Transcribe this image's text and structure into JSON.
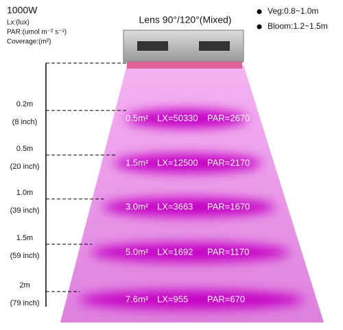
{
  "header": {
    "model": "1000W",
    "lx_unit": "Lx:(lux)",
    "par_unit": "PAR:(umol m⁻² s⁻¹)",
    "coverage_unit": "Coverage:(m²)"
  },
  "lens": "Lens 90°/120°(Mixed)",
  "legend": [
    {
      "label": "Veg:0.8~1.0m"
    },
    {
      "label": "Bloom:1.2~1.5m"
    }
  ],
  "levels": [
    {
      "distance": "0.2m",
      "inch": "(8 inch)",
      "coverage": "0.5m²",
      "lx": "LX=50330",
      "par": "PAR=2670"
    },
    {
      "distance": "0.5m",
      "inch": "(20 inch)",
      "coverage": "1.5m²",
      "lx": "LX=12500",
      "par": "PAR=2170"
    },
    {
      "distance": "1.0m",
      "inch": "(39 inch)",
      "coverage": "3.0m²",
      "lx": "LX=3663",
      "par": "PAR=1670"
    },
    {
      "distance": "1.5m",
      "inch": "(59 inch)",
      "coverage": "5.0m²",
      "lx": "LX=1692",
      "par": "PAR=1170"
    },
    {
      "distance": "2m",
      "inch": "(79 inch)",
      "coverage": "7.6m²",
      "lx": "LX=955",
      "par": "PAR=670"
    }
  ]
}
